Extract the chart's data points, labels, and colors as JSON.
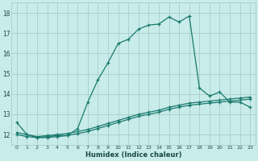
{
  "xlabel": "Humidex (Indice chaleur)",
  "background_color": "#c8ece9",
  "grid_color": "#a8ceca",
  "line_color": "#1a7a6e",
  "xlim": [
    -0.5,
    23.5
  ],
  "ylim": [
    11.5,
    18.5
  ],
  "yticks": [
    12,
    13,
    14,
    15,
    16,
    17,
    18
  ],
  "xticks": [
    0,
    1,
    2,
    3,
    4,
    5,
    6,
    7,
    8,
    9,
    10,
    11,
    12,
    13,
    14,
    15,
    16,
    17,
    18,
    19,
    20,
    21,
    22,
    23
  ],
  "line1_x": [
    0,
    1,
    2,
    3,
    4,
    5,
    6,
    7,
    8,
    9,
    10,
    11,
    12,
    13,
    14,
    15,
    16,
    17,
    18,
    19,
    20,
    21,
    22,
    23
  ],
  "line1_y": [
    12.6,
    12.0,
    11.85,
    11.9,
    11.95,
    11.95,
    12.3,
    13.6,
    14.7,
    15.55,
    16.5,
    16.7,
    17.2,
    17.4,
    17.45,
    17.8,
    17.55,
    17.85,
    14.3,
    13.9,
    14.1,
    13.6,
    13.6,
    13.35
  ],
  "line2_x": [
    0,
    1,
    2,
    3,
    4,
    5,
    6,
    7,
    8,
    9,
    10,
    11,
    12,
    13,
    14,
    15,
    16,
    17,
    18,
    19,
    20,
    21,
    22,
    23
  ],
  "line2_y": [
    12.1,
    12.0,
    11.9,
    11.95,
    12.0,
    12.05,
    12.15,
    12.25,
    12.4,
    12.55,
    12.7,
    12.85,
    13.0,
    13.1,
    13.2,
    13.35,
    13.45,
    13.55,
    13.6,
    13.65,
    13.7,
    13.75,
    13.8,
    13.85
  ],
  "line3_x": [
    0,
    1,
    2,
    3,
    4,
    5,
    6,
    7,
    8,
    9,
    10,
    11,
    12,
    13,
    14,
    15,
    16,
    17,
    18,
    19,
    20,
    21,
    22,
    23
  ],
  "line3_y": [
    12.0,
    11.9,
    11.85,
    11.85,
    11.9,
    11.95,
    12.05,
    12.15,
    12.3,
    12.45,
    12.6,
    12.75,
    12.9,
    13.0,
    13.1,
    13.25,
    13.35,
    13.45,
    13.5,
    13.55,
    13.6,
    13.65,
    13.7,
    13.75
  ]
}
